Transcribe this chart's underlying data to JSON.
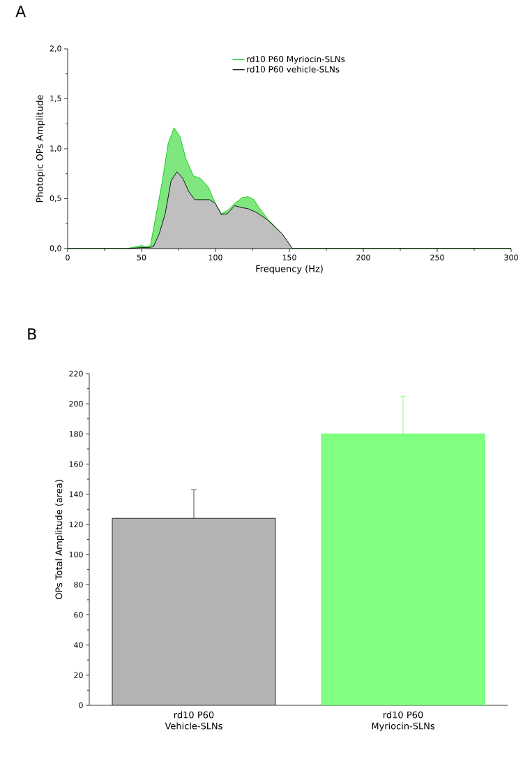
{
  "chart_data": [
    {
      "type": "area",
      "title": "A",
      "xlabel": "Frequency (Hz)",
      "ylabel": "Photopic OPs Amplitude",
      "xlim": [
        0,
        300
      ],
      "ylim": [
        0,
        2.0
      ],
      "xticks": [
        0,
        50,
        100,
        150,
        200,
        250,
        300
      ],
      "yticks": [
        {
          "value": 0,
          "label": "0,0"
        },
        {
          "value": 0.5,
          "label": "0,5"
        },
        {
          "value": 1.0,
          "label": "1,0"
        },
        {
          "value": 1.5,
          "label": "1,5"
        },
        {
          "value": 2.0,
          "label": "2,0"
        }
      ],
      "legend": "top",
      "series": [
        {
          "name": "rd10 P60 Myriocin-SLNs",
          "color": "#00cc00",
          "x": [
            0,
            10,
            20,
            30,
            40,
            50,
            53,
            56,
            60,
            64,
            68,
            72,
            76,
            80,
            85,
            90,
            95,
            100,
            104,
            108,
            113,
            118,
            122,
            126,
            130,
            135,
            145,
            152,
            200,
            250,
            300
          ],
          "values": [
            0,
            0,
            0,
            0,
            0,
            0.03,
            0.02,
            0.03,
            0.35,
            0.67,
            1.05,
            1.21,
            1.12,
            0.9,
            0.73,
            0.7,
            0.62,
            0.45,
            0.35,
            0.38,
            0.45,
            0.51,
            0.52,
            0.49,
            0.4,
            0.3,
            0.15,
            0,
            0,
            0,
            0
          ]
        },
        {
          "name": "rd10 P60 vehicle-SLNs",
          "color": "#000000",
          "x": [
            0,
            10,
            20,
            30,
            40,
            50,
            55,
            58,
            62,
            66,
            70,
            74,
            78,
            82,
            86,
            90,
            96,
            100,
            104,
            108,
            113,
            118,
            122,
            128,
            135,
            145,
            152,
            200,
            250,
            300
          ],
          "values": [
            0,
            0,
            0,
            0,
            0,
            0.01,
            0.01,
            0.02,
            0.15,
            0.35,
            0.68,
            0.77,
            0.7,
            0.57,
            0.49,
            0.49,
            0.49,
            0.45,
            0.34,
            0.35,
            0.43,
            0.41,
            0.4,
            0.36,
            0.29,
            0.15,
            0,
            0,
            0,
            0
          ]
        }
      ]
    },
    {
      "type": "bar",
      "title": "B",
      "ylabel": "OPs Total Amplitude (area)",
      "categories": [
        "rd10 P60 Vehicle-SLNs",
        "rd10 P60 Myriocin-SLNs"
      ],
      "values": [
        124,
        180
      ],
      "errors": [
        19,
        25
      ],
      "colors": [
        "#b3b3b3",
        "#80ff80"
      ],
      "ylim": [
        0,
        220
      ],
      "yticks": [
        0,
        20,
        40,
        60,
        80,
        100,
        120,
        140,
        160,
        180,
        200,
        220
      ]
    }
  ]
}
